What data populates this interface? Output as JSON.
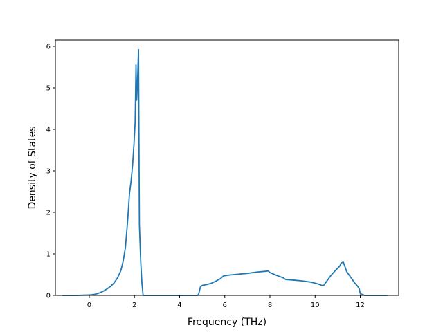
{
  "chart_data": {
    "type": "line",
    "title": "",
    "xlabel": "Frequency (THz)",
    "ylabel": "Density of States",
    "xlim": [
      -1.5,
      13.7
    ],
    "ylim": [
      0,
      6.15
    ],
    "xticks": [
      0,
      2,
      4,
      6,
      8,
      10,
      12
    ],
    "yticks": [
      0,
      1,
      2,
      3,
      4,
      5,
      6
    ],
    "grid": false,
    "color": "#1f77b4",
    "series": [
      {
        "name": "",
        "x": [
          -1.2,
          -0.6,
          0.0,
          0.2,
          0.35,
          0.5,
          0.65,
          0.8,
          0.95,
          1.1,
          1.25,
          1.4,
          1.5,
          1.6,
          1.7,
          1.78,
          1.85,
          1.92,
          1.98,
          2.03,
          2.07,
          2.1,
          2.14,
          2.18,
          2.22,
          2.28,
          2.33,
          2.38,
          2.4,
          2.6,
          3.0,
          4.0,
          4.5,
          4.8,
          4.85,
          4.92,
          5.0,
          5.2,
          5.4,
          5.6,
          5.8,
          5.95,
          6.2,
          6.6,
          7.0,
          7.4,
          7.8,
          7.92,
          8.0,
          8.3,
          8.6,
          8.7,
          8.75,
          9.0,
          9.4,
          9.8,
          10.1,
          10.3,
          10.38,
          10.5,
          10.7,
          10.9,
          11.1,
          11.15,
          11.25,
          11.4,
          11.6,
          11.75,
          11.85,
          11.95,
          12.0,
          12.2,
          12.6,
          13.2
        ],
        "y": [
          0,
          0,
          0.01,
          0.02,
          0.04,
          0.07,
          0.11,
          0.16,
          0.22,
          0.3,
          0.42,
          0.6,
          0.82,
          1.15,
          1.8,
          2.45,
          2.75,
          3.15,
          3.65,
          4.15,
          5.55,
          4.7,
          5.2,
          5.92,
          1.7,
          0.8,
          0.3,
          0.02,
          0,
          0,
          0,
          0,
          0,
          0,
          0.04,
          0.2,
          0.24,
          0.26,
          0.29,
          0.34,
          0.4,
          0.47,
          0.49,
          0.51,
          0.53,
          0.56,
          0.58,
          0.59,
          0.55,
          0.48,
          0.42,
          0.38,
          0.38,
          0.37,
          0.35,
          0.32,
          0.28,
          0.24,
          0.24,
          0.33,
          0.48,
          0.6,
          0.71,
          0.78,
          0.8,
          0.57,
          0.42,
          0.3,
          0.24,
          0.17,
          0.04,
          0,
          0,
          0
        ]
      }
    ]
  }
}
